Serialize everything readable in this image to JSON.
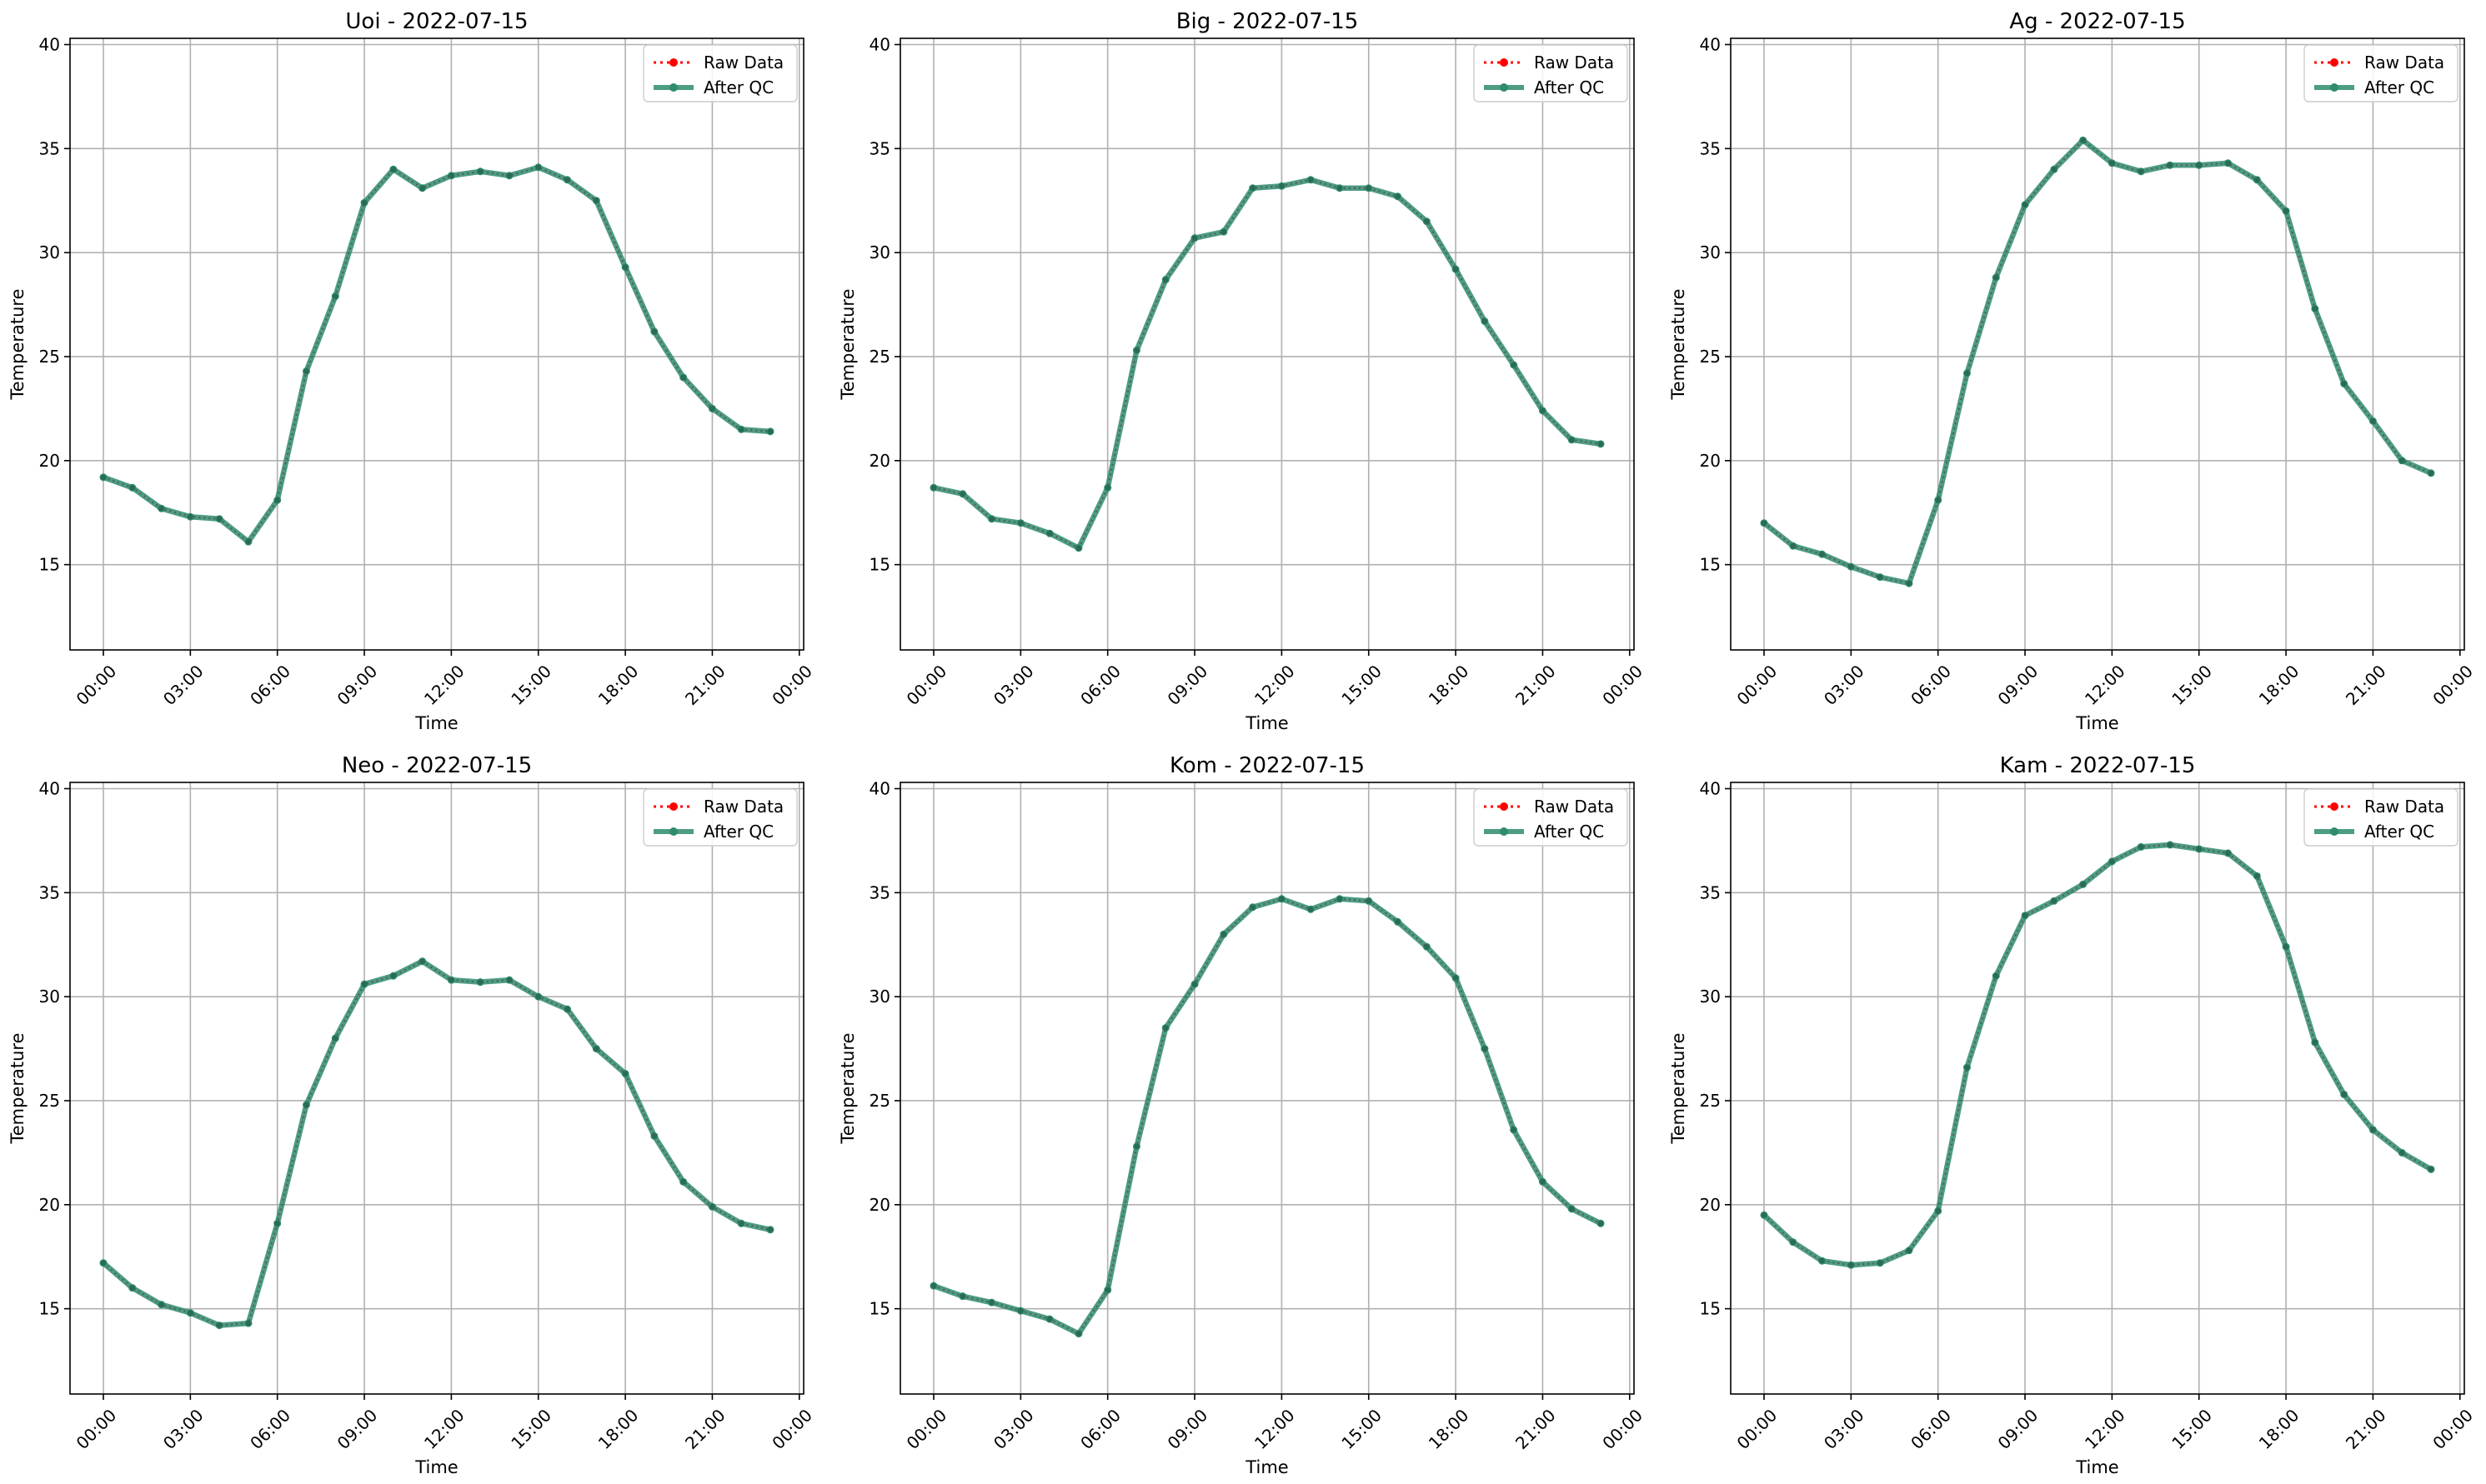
{
  "figure": {
    "legend": {
      "raw_label": "Raw Data",
      "qc_label": "After QC",
      "placement": "top-right"
    }
  },
  "chart_data": [
    {
      "type": "line",
      "title": "Uoi - 2022-07-15",
      "xlabel": "Time",
      "ylabel": "Temperature",
      "x_hours": [
        0,
        1,
        2,
        3,
        4,
        5,
        6,
        7,
        8,
        9,
        10,
        11,
        12,
        13,
        14,
        15,
        16,
        17,
        18,
        19,
        20,
        21,
        22,
        23
      ],
      "x_tick_labels": [
        "00:00",
        "03:00",
        "06:00",
        "09:00",
        "12:00",
        "15:00",
        "18:00",
        "21:00",
        "00:00"
      ],
      "y_ticks": [
        15,
        20,
        25,
        30,
        35,
        40
      ],
      "xlim": [
        -1.15,
        24.15
      ],
      "ylim": [
        10.9,
        40.3
      ],
      "grid": true,
      "legend_placement": "top-right",
      "series": [
        {
          "name": "Raw Data",
          "color": "#ff0000",
          "style": "dotted",
          "values": [
            19.2,
            18.7,
            17.7,
            17.3,
            17.2,
            16.1,
            18.1,
            24.3,
            27.9,
            32.4,
            34.0,
            33.1,
            33.7,
            33.9,
            33.7,
            34.1,
            33.5,
            32.5,
            29.3,
            26.2,
            24.0,
            22.5,
            21.5,
            21.4
          ]
        },
        {
          "name": "After QC",
          "color": "#2e8b6e",
          "style": "solid",
          "values": [
            19.2,
            18.7,
            17.7,
            17.3,
            17.2,
            16.1,
            18.1,
            24.3,
            27.9,
            32.4,
            34.0,
            33.1,
            33.7,
            33.9,
            33.7,
            34.1,
            33.5,
            32.5,
            29.3,
            26.2,
            24.0,
            22.5,
            21.5,
            21.4
          ]
        }
      ]
    },
    {
      "type": "line",
      "title": "Big - 2022-07-15",
      "xlabel": "Time",
      "ylabel": "Temperature",
      "x_hours": [
        0,
        1,
        2,
        3,
        4,
        5,
        6,
        7,
        8,
        9,
        10,
        11,
        12,
        13,
        14,
        15,
        16,
        17,
        18,
        19,
        20,
        21,
        22,
        23
      ],
      "x_tick_labels": [
        "00:00",
        "03:00",
        "06:00",
        "09:00",
        "12:00",
        "15:00",
        "18:00",
        "21:00",
        "00:00"
      ],
      "y_ticks": [
        15,
        20,
        25,
        30,
        35,
        40
      ],
      "xlim": [
        -1.15,
        24.15
      ],
      "ylim": [
        10.9,
        40.3
      ],
      "grid": true,
      "legend_placement": "top-right",
      "series": [
        {
          "name": "Raw Data",
          "color": "#ff0000",
          "style": "dotted",
          "values": [
            18.7,
            18.4,
            17.2,
            17.0,
            16.5,
            15.8,
            18.7,
            25.3,
            28.7,
            30.7,
            31.0,
            33.1,
            33.2,
            33.5,
            33.1,
            33.1,
            32.7,
            31.5,
            29.2,
            26.7,
            24.6,
            22.4,
            21.0,
            20.8
          ]
        },
        {
          "name": "After QC",
          "color": "#2e8b6e",
          "style": "solid",
          "values": [
            18.7,
            18.4,
            17.2,
            17.0,
            16.5,
            15.8,
            18.7,
            25.3,
            28.7,
            30.7,
            31.0,
            33.1,
            33.2,
            33.5,
            33.1,
            33.1,
            32.7,
            31.5,
            29.2,
            26.7,
            24.6,
            22.4,
            21.0,
            20.8
          ]
        }
      ]
    },
    {
      "type": "line",
      "title": "Ag - 2022-07-15",
      "xlabel": "Time",
      "ylabel": "Temperature",
      "x_hours": [
        0,
        1,
        2,
        3,
        4,
        5,
        6,
        7,
        8,
        9,
        10,
        11,
        12,
        13,
        14,
        15,
        16,
        17,
        18,
        19,
        20,
        21,
        22,
        23
      ],
      "x_tick_labels": [
        "00:00",
        "03:00",
        "06:00",
        "09:00",
        "12:00",
        "15:00",
        "18:00",
        "21:00",
        "00:00"
      ],
      "y_ticks": [
        15,
        20,
        25,
        30,
        35,
        40
      ],
      "xlim": [
        -1.15,
        24.15
      ],
      "ylim": [
        10.9,
        40.3
      ],
      "grid": true,
      "legend_placement": "top-right",
      "series": [
        {
          "name": "Raw Data",
          "color": "#ff0000",
          "style": "dotted",
          "values": [
            17.0,
            15.9,
            15.5,
            14.9,
            14.4,
            14.1,
            18.1,
            24.2,
            28.8,
            32.3,
            34.0,
            35.4,
            34.3,
            33.9,
            34.2,
            34.2,
            34.3,
            33.5,
            32.0,
            27.3,
            23.7,
            21.9,
            20.0,
            19.4
          ]
        },
        {
          "name": "After QC",
          "color": "#2e8b6e",
          "style": "solid",
          "values": [
            17.0,
            15.9,
            15.5,
            14.9,
            14.4,
            14.1,
            18.1,
            24.2,
            28.8,
            32.3,
            34.0,
            35.4,
            34.3,
            33.9,
            34.2,
            34.2,
            34.3,
            33.5,
            32.0,
            27.3,
            23.7,
            21.9,
            20.0,
            19.4
          ]
        }
      ]
    },
    {
      "type": "line",
      "title": "Neo - 2022-07-15",
      "xlabel": "Time",
      "ylabel": "Temperature",
      "x_hours": [
        0,
        1,
        2,
        3,
        4,
        5,
        6,
        7,
        8,
        9,
        10,
        11,
        12,
        13,
        14,
        15,
        16,
        17,
        18,
        19,
        20,
        21,
        22,
        23
      ],
      "x_tick_labels": [
        "00:00",
        "03:00",
        "06:00",
        "09:00",
        "12:00",
        "15:00",
        "18:00",
        "21:00",
        "00:00"
      ],
      "y_ticks": [
        15,
        20,
        25,
        30,
        35,
        40
      ],
      "xlim": [
        -1.15,
        24.15
      ],
      "ylim": [
        10.9,
        40.3
      ],
      "grid": true,
      "legend_placement": "top-right",
      "series": [
        {
          "name": "Raw Data",
          "color": "#ff0000",
          "style": "dotted",
          "values": [
            17.2,
            16.0,
            15.2,
            14.8,
            14.2,
            14.3,
            19.1,
            24.8,
            28.0,
            30.6,
            31.0,
            31.7,
            30.8,
            30.7,
            30.8,
            30.0,
            29.4,
            27.5,
            26.3,
            23.3,
            21.1,
            19.9,
            19.1,
            18.8
          ]
        },
        {
          "name": "After QC",
          "color": "#2e8b6e",
          "style": "solid",
          "values": [
            17.2,
            16.0,
            15.2,
            14.8,
            14.2,
            14.3,
            19.1,
            24.8,
            28.0,
            30.6,
            31.0,
            31.7,
            30.8,
            30.7,
            30.8,
            30.0,
            29.4,
            27.5,
            26.3,
            23.3,
            21.1,
            19.9,
            19.1,
            18.8
          ]
        }
      ]
    },
    {
      "type": "line",
      "title": "Kom - 2022-07-15",
      "xlabel": "Time",
      "ylabel": "Temperature",
      "x_hours": [
        0,
        1,
        2,
        3,
        4,
        5,
        6,
        7,
        8,
        9,
        10,
        11,
        12,
        13,
        14,
        15,
        16,
        17,
        18,
        19,
        20,
        21,
        22,
        23
      ],
      "x_tick_labels": [
        "00:00",
        "03:00",
        "06:00",
        "09:00",
        "12:00",
        "15:00",
        "18:00",
        "21:00",
        "00:00"
      ],
      "y_ticks": [
        15,
        20,
        25,
        30,
        35,
        40
      ],
      "xlim": [
        -1.15,
        24.15
      ],
      "ylim": [
        10.9,
        40.3
      ],
      "grid": true,
      "legend_placement": "top-right",
      "series": [
        {
          "name": "Raw Data",
          "color": "#ff0000",
          "style": "dotted",
          "values": [
            16.1,
            15.6,
            15.3,
            14.9,
            14.5,
            13.8,
            15.9,
            22.8,
            28.5,
            30.6,
            33.0,
            34.3,
            34.7,
            34.2,
            34.7,
            34.6,
            33.6,
            32.4,
            30.9,
            27.5,
            23.6,
            21.1,
            19.8,
            19.1
          ]
        },
        {
          "name": "After QC",
          "color": "#2e8b6e",
          "style": "solid",
          "values": [
            16.1,
            15.6,
            15.3,
            14.9,
            14.5,
            13.8,
            15.9,
            22.8,
            28.5,
            30.6,
            33.0,
            34.3,
            34.7,
            34.2,
            34.7,
            34.6,
            33.6,
            32.4,
            30.9,
            27.5,
            23.6,
            21.1,
            19.8,
            19.1
          ]
        }
      ]
    },
    {
      "type": "line",
      "title": "Kam - 2022-07-15",
      "xlabel": "Time",
      "ylabel": "Temperature",
      "x_hours": [
        0,
        1,
        2,
        3,
        4,
        5,
        6,
        7,
        8,
        9,
        10,
        11,
        12,
        13,
        14,
        15,
        16,
        17,
        18,
        19,
        20,
        21,
        22,
        23
      ],
      "x_tick_labels": [
        "00:00",
        "03:00",
        "06:00",
        "09:00",
        "12:00",
        "15:00",
        "18:00",
        "21:00",
        "00:00"
      ],
      "y_ticks": [
        15,
        20,
        25,
        30,
        35,
        40
      ],
      "xlim": [
        -1.15,
        24.15
      ],
      "ylim": [
        10.9,
        40.3
      ],
      "grid": true,
      "legend_placement": "top-right",
      "series": [
        {
          "name": "Raw Data",
          "color": "#ff0000",
          "style": "dotted",
          "values": [
            19.5,
            18.2,
            17.3,
            17.1,
            17.2,
            17.8,
            19.7,
            26.6,
            31.0,
            33.9,
            34.6,
            35.4,
            36.5,
            37.2,
            37.3,
            37.1,
            36.9,
            35.8,
            32.4,
            27.8,
            25.3,
            23.6,
            22.5,
            21.7
          ]
        },
        {
          "name": "After QC",
          "color": "#2e8b6e",
          "style": "solid",
          "values": [
            19.5,
            18.2,
            17.3,
            17.1,
            17.2,
            17.8,
            19.7,
            26.6,
            31.0,
            33.9,
            34.6,
            35.4,
            36.5,
            37.2,
            37.3,
            37.1,
            36.9,
            35.8,
            32.4,
            27.8,
            25.3,
            23.6,
            22.5,
            21.7
          ]
        }
      ]
    }
  ]
}
